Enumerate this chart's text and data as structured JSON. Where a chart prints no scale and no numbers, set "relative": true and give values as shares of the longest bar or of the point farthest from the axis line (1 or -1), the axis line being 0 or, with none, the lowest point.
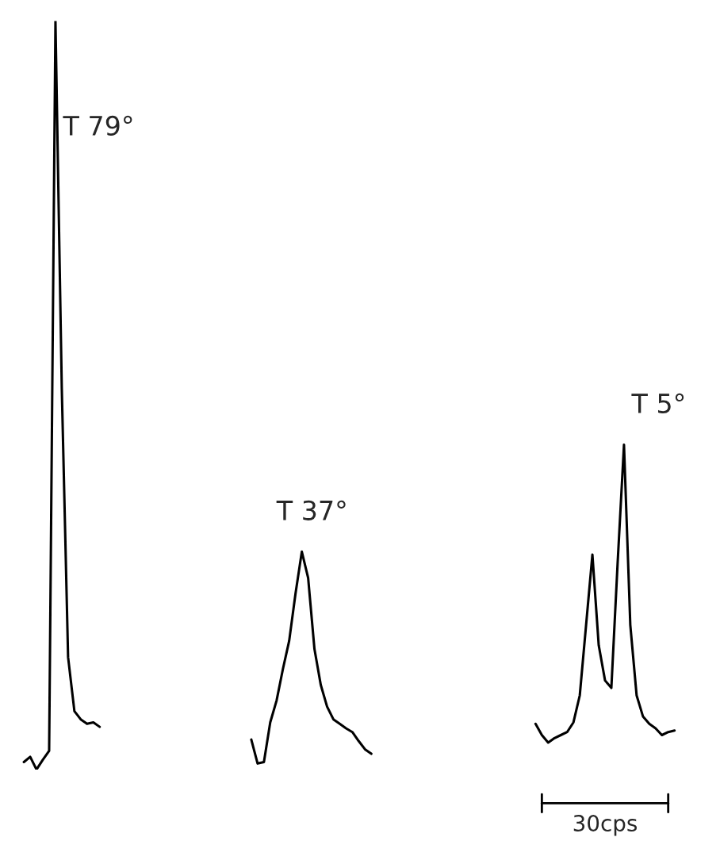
{
  "chart_data": {
    "type": "line",
    "relative": true,
    "legend": false,
    "marker": "none",
    "line_style": "solid",
    "categories": [
      null,
      null,
      null,
      null,
      null,
      null,
      null,
      null,
      null,
      null,
      null,
      null,
      null,
      null,
      null,
      null,
      null,
      null,
      null,
      null,
      null,
      null,
      null,
      null,
      null,
      null,
      null,
      null,
      null,
      null,
      null,
      null,
      null,
      null,
      null,
      null,
      null,
      null,
      null,
      null,
      null,
      null,
      null,
      null,
      null,
      null,
      null,
      null,
      null,
      null,
      null,
      null,
      null,
      null,
      null,
      null,
      null,
      null,
      null,
      null,
      null,
      null,
      null,
      null,
      null,
      null,
      null,
      null,
      null,
      null,
      null,
      null,
      null,
      null,
      null,
      null,
      null,
      null,
      null,
      null,
      null,
      null,
      null,
      null,
      null,
      null,
      null,
      null,
      null,
      null,
      null,
      null,
      null,
      null,
      null,
      null,
      null,
      null,
      null,
      null,
      null,
      null,
      null,
      null,
      null,
      null
    ],
    "series": [
      {
        "color": "#000000",
        "values": [
          null,
          0.01,
          0.017,
          0,
          0.013,
          0.025,
          1.0,
          0.51,
          0.15,
          0.078,
          0.067,
          0.061,
          0.063,
          0.057,
          null,
          null,
          null,
          null,
          null,
          null,
          null,
          null,
          null,
          null,
          null,
          null,
          null,
          null,
          null,
          null,
          null,
          null,
          null,
          null,
          null,
          null,
          null,
          null,
          null,
          null,
          null,
          null,
          null,
          null,
          null,
          null,
          null,
          null,
          null,
          null,
          null,
          null,
          null,
          null,
          null,
          null,
          null,
          null,
          null,
          null,
          null,
          null,
          null,
          null,
          null,
          null,
          null,
          null,
          null,
          null,
          null,
          null,
          null,
          null,
          null,
          null,
          null,
          null,
          null,
          null,
          null,
          null,
          null,
          null,
          null,
          null,
          null,
          null,
          null,
          null,
          null,
          null,
          null,
          null,
          null,
          null,
          null,
          null,
          null,
          null,
          null,
          null,
          null,
          null,
          null,
          null
        ]
      },
      {
        "color": "#000000",
        "values": [
          null,
          null,
          null,
          null,
          null,
          null,
          null,
          null,
          null,
          null,
          null,
          null,
          null,
          null,
          null,
          null,
          null,
          null,
          null,
          null,
          null,
          null,
          null,
          null,
          null,
          null,
          null,
          null,
          null,
          null,
          null,
          null,
          null,
          null,
          null,
          null,
          null,
          0.04,
          0.008,
          0.01,
          0.063,
          0.092,
          0.134,
          0.172,
          0.235,
          0.291,
          0.256,
          0.161,
          0.113,
          0.084,
          0.067,
          0.061,
          0.055,
          0.05,
          0.038,
          0.027,
          0.021,
          null,
          null,
          null,
          null,
          null,
          null,
          null,
          null,
          null,
          null,
          null,
          null,
          null,
          null,
          null,
          null,
          null,
          null,
          null,
          null,
          null,
          null,
          null,
          null,
          null,
          null,
          null,
          null,
          null,
          null,
          null,
          null,
          null,
          null,
          null,
          null,
          null,
          null,
          null,
          null,
          null,
          null,
          null,
          null,
          null,
          null,
          null,
          null,
          null
        ]
      },
      {
        "color": "#000000",
        "values": [
          null,
          null,
          null,
          null,
          null,
          null,
          null,
          null,
          null,
          null,
          null,
          null,
          null,
          null,
          null,
          null,
          null,
          null,
          null,
          null,
          null,
          null,
          null,
          null,
          null,
          null,
          null,
          null,
          null,
          null,
          null,
          null,
          null,
          null,
          null,
          null,
          null,
          null,
          null,
          null,
          null,
          null,
          null,
          null,
          null,
          null,
          null,
          null,
          null,
          null,
          null,
          null,
          null,
          null,
          null,
          null,
          null,
          null,
          null,
          null,
          null,
          null,
          null,
          null,
          null,
          null,
          null,
          null,
          null,
          null,
          null,
          null,
          null,
          null,
          null,
          null,
          null,
          null,
          null,
          null,
          null,
          null,
          0.061,
          0.046,
          0.036,
          0.042,
          0.046,
          0.05,
          0.063,
          0.099,
          0.193,
          0.287,
          0.166,
          0.119,
          0.109,
          0.277,
          0.434,
          0.193,
          0.099,
          0.071,
          0.061,
          0.055,
          0.046,
          0.05,
          0.052,
          null
        ]
      }
    ],
    "annotations": [
      "T 79°",
      "T 37°",
      "T 5°",
      "30cps"
    ]
  }
}
